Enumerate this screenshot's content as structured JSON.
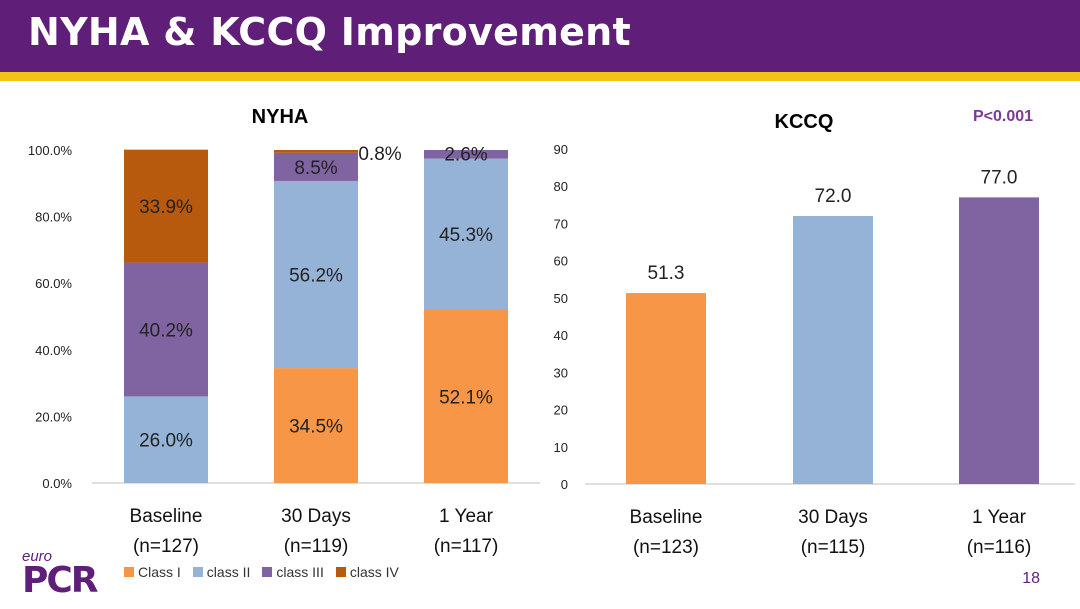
{
  "slide": {
    "title": "NYHA & KCCQ Improvement",
    "page_number": "18",
    "logo": {
      "top": "euro",
      "main": "PCR"
    },
    "p_value": "P<0.001"
  },
  "colors": {
    "header": "#5f1f78",
    "stripe": "#f2c218",
    "class_i": "#f79646",
    "class_ii": "#95b3d7",
    "class_iii": "#8064a2",
    "class_iv": "#b85a0d"
  },
  "chart_data": [
    {
      "type": "bar",
      "stacked": true,
      "title": "NYHA",
      "categories": [
        {
          "line1": "Baseline",
          "line2": "(n=127)"
        },
        {
          "line1": "30 Days",
          "line2": "(n=119)"
        },
        {
          "line1": "1 Year",
          "line2": "(n=117)"
        }
      ],
      "series": [
        {
          "name": "Class I",
          "color": "#f79646",
          "values": [
            0,
            34.5,
            52.1
          ],
          "labels": [
            "",
            "34.5%",
            "52.1%"
          ]
        },
        {
          "name": "class II",
          "color": "#95b3d7",
          "values": [
            26.0,
            56.2,
            45.3
          ],
          "labels": [
            "26.0%",
            "56.2%",
            "45.3%"
          ]
        },
        {
          "name": "class III",
          "color": "#8064a2",
          "values": [
            40.2,
            8.5,
            2.6
          ],
          "labels": [
            "40.2%",
            "8.5%",
            "2.6%"
          ]
        },
        {
          "name": "class IV",
          "color": "#b85a0d",
          "values": [
            33.9,
            0.8,
            0
          ],
          "labels": [
            "33.9%",
            "0.8%",
            ""
          ]
        }
      ],
      "yticks": [
        "0.0%",
        "20.0%",
        "40.0%",
        "60.0%",
        "80.0%",
        "100.0%"
      ],
      "ylim": [
        0,
        100
      ],
      "legend_position": "bottom"
    },
    {
      "type": "bar",
      "title": "KCCQ",
      "categories": [
        {
          "line1": "Baseline",
          "line2": "(n=123)"
        },
        {
          "line1": "30 Days",
          "line2": "(n=115)"
        },
        {
          "line1": "1 Year",
          "line2": "(n=116)"
        }
      ],
      "values": [
        51.3,
        72.0,
        77.0
      ],
      "labels": [
        "51.3",
        "72.0",
        "77.0"
      ],
      "colors": [
        "#f79646",
        "#95b3d7",
        "#8064a2"
      ],
      "yticks": [
        "0",
        "10",
        "20",
        "30",
        "40",
        "50",
        "60",
        "70",
        "80",
        "90"
      ],
      "ylim": [
        0,
        90
      ]
    }
  ]
}
